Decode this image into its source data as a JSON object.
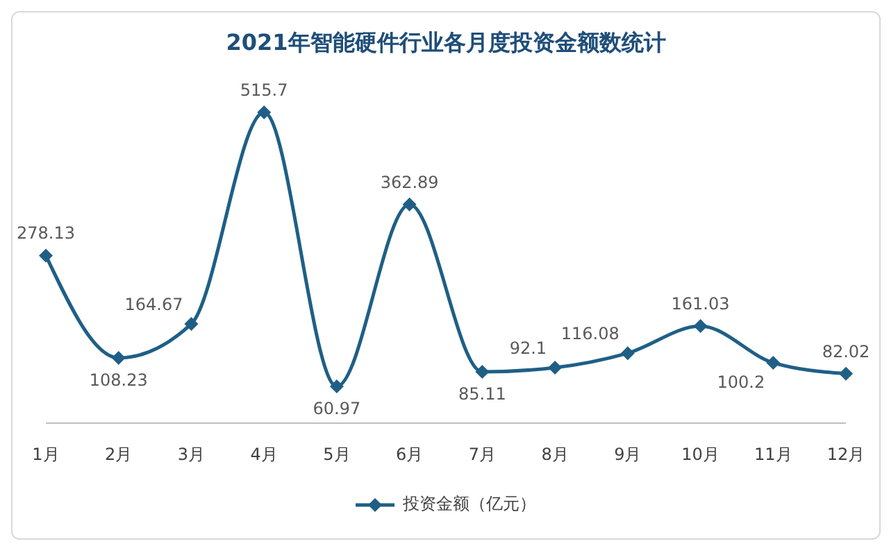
{
  "chart_data": {
    "type": "line",
    "title": "2021年智能硬件行业各月度投资金额数统计",
    "categories": [
      "1月",
      "2月",
      "3月",
      "4月",
      "5月",
      "6月",
      "7月",
      "8月",
      "9月",
      "10月",
      "11月",
      "12月"
    ],
    "series": [
      {
        "name": "投资金额（亿元）",
        "color": "#1f5f86",
        "values": [
          278.13,
          108.23,
          164.67,
          515.7,
          60.97,
          362.89,
          85.11,
          92.1,
          116.08,
          161.03,
          100.2,
          82.02
        ]
      }
    ],
    "data_labels": true,
    "marker": "diamond",
    "legend": "bottom",
    "grid": false
  }
}
